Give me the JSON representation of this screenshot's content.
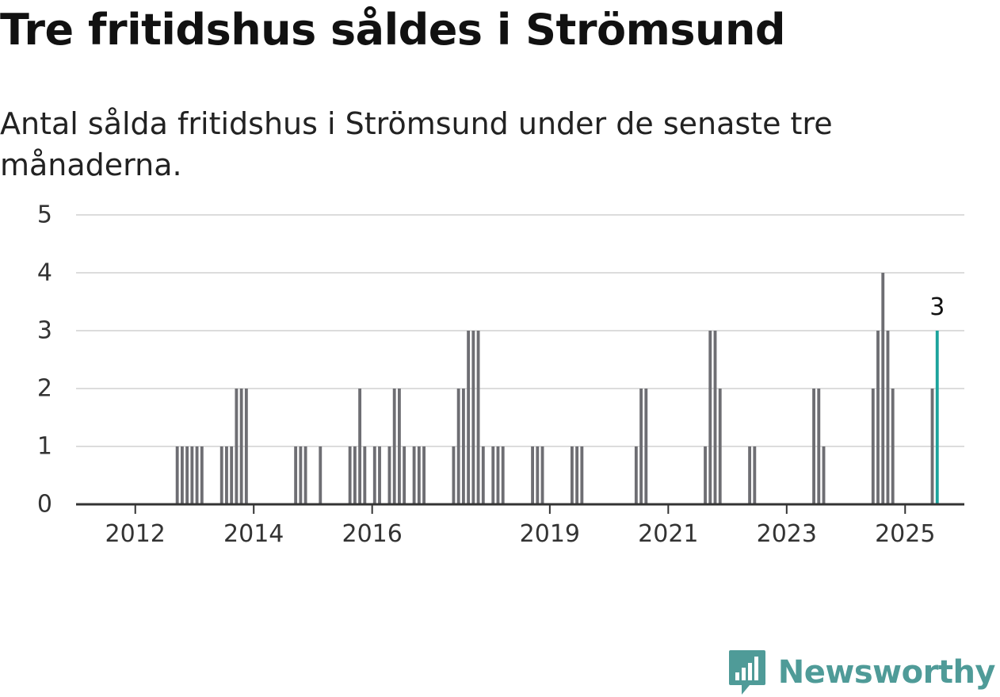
{
  "title": "Tre fritidshus såldes i Strömsund",
  "subtitle": "Antal sålda fritidshus i Strömsund under de senaste tre månaderna.",
  "brand": {
    "name": "Newsworthy",
    "icon": "newsworthy-logo-icon"
  },
  "colors": {
    "bar": "#6e6e73",
    "highlight": "#1ba39c",
    "grid": "#dcdcdc",
    "axis": "#333333"
  },
  "chart_data": {
    "type": "bar",
    "title": "Tre fritidshus såldes i Strömsund",
    "subtitle": "Antal sålda fritidshus i Strömsund under de senaste tre månaderna.",
    "xlabel": "",
    "ylabel": "",
    "ylim": [
      0,
      5
    ],
    "yticks": [
      0,
      1,
      2,
      3,
      4,
      5
    ],
    "grid": true,
    "x_start": "2011-01",
    "x_end": "2025-12",
    "x_ticks": [
      {
        "label": "2012",
        "month": "2012-01"
      },
      {
        "label": "2014",
        "month": "2014-01"
      },
      {
        "label": "2016",
        "month": "2016-01"
      },
      {
        "label": "2019",
        "month": "2019-01"
      },
      {
        "label": "2021",
        "month": "2021-01"
      },
      {
        "label": "2023",
        "month": "2023-01"
      },
      {
        "label": "2025",
        "month": "2025-01"
      }
    ],
    "series": [
      {
        "name": "Antal sålda fritidshus (rullande tre månader)",
        "points": [
          {
            "month": "2012-09",
            "value": 1
          },
          {
            "month": "2012-10",
            "value": 1
          },
          {
            "month": "2012-11",
            "value": 1
          },
          {
            "month": "2012-12",
            "value": 1
          },
          {
            "month": "2013-01",
            "value": 1
          },
          {
            "month": "2013-02",
            "value": 1
          },
          {
            "month": "2013-06",
            "value": 1
          },
          {
            "month": "2013-07",
            "value": 1
          },
          {
            "month": "2013-08",
            "value": 1
          },
          {
            "month": "2013-09",
            "value": 2
          },
          {
            "month": "2013-10",
            "value": 2
          },
          {
            "month": "2013-11",
            "value": 2
          },
          {
            "month": "2014-09",
            "value": 1
          },
          {
            "month": "2014-10",
            "value": 1
          },
          {
            "month": "2014-11",
            "value": 1
          },
          {
            "month": "2015-02",
            "value": 1
          },
          {
            "month": "2015-08",
            "value": 1
          },
          {
            "month": "2015-09",
            "value": 1
          },
          {
            "month": "2015-10",
            "value": 2
          },
          {
            "month": "2015-11",
            "value": 1
          },
          {
            "month": "2016-01",
            "value": 1
          },
          {
            "month": "2016-02",
            "value": 1
          },
          {
            "month": "2016-04",
            "value": 1
          },
          {
            "month": "2016-05",
            "value": 2
          },
          {
            "month": "2016-06",
            "value": 2
          },
          {
            "month": "2016-07",
            "value": 1
          },
          {
            "month": "2016-09",
            "value": 1
          },
          {
            "month": "2016-10",
            "value": 1
          },
          {
            "month": "2016-11",
            "value": 1
          },
          {
            "month": "2017-05",
            "value": 1
          },
          {
            "month": "2017-06",
            "value": 2
          },
          {
            "month": "2017-07",
            "value": 2
          },
          {
            "month": "2017-08",
            "value": 3
          },
          {
            "month": "2017-09",
            "value": 3
          },
          {
            "month": "2017-10",
            "value": 3
          },
          {
            "month": "2017-11",
            "value": 1
          },
          {
            "month": "2018-01",
            "value": 1
          },
          {
            "month": "2018-02",
            "value": 1
          },
          {
            "month": "2018-03",
            "value": 1
          },
          {
            "month": "2018-09",
            "value": 1
          },
          {
            "month": "2018-10",
            "value": 1
          },
          {
            "month": "2018-11",
            "value": 1
          },
          {
            "month": "2019-05",
            "value": 1
          },
          {
            "month": "2019-06",
            "value": 1
          },
          {
            "month": "2019-07",
            "value": 1
          },
          {
            "month": "2020-06",
            "value": 1
          },
          {
            "month": "2020-07",
            "value": 2
          },
          {
            "month": "2020-08",
            "value": 2
          },
          {
            "month": "2021-08",
            "value": 1
          },
          {
            "month": "2021-09",
            "value": 3
          },
          {
            "month": "2021-10",
            "value": 3
          },
          {
            "month": "2021-11",
            "value": 2
          },
          {
            "month": "2022-05",
            "value": 1
          },
          {
            "month": "2022-06",
            "value": 1
          },
          {
            "month": "2023-06",
            "value": 2
          },
          {
            "month": "2023-07",
            "value": 2
          },
          {
            "month": "2023-08",
            "value": 1
          },
          {
            "month": "2024-06",
            "value": 2
          },
          {
            "month": "2024-07",
            "value": 3
          },
          {
            "month": "2024-08",
            "value": 4
          },
          {
            "month": "2024-09",
            "value": 3
          },
          {
            "month": "2024-10",
            "value": 2
          },
          {
            "month": "2025-06",
            "value": 2
          },
          {
            "month": "2025-07",
            "value": 3
          }
        ]
      }
    ],
    "highlight": {
      "month": "2025-07",
      "value": 3,
      "label": "3"
    }
  }
}
